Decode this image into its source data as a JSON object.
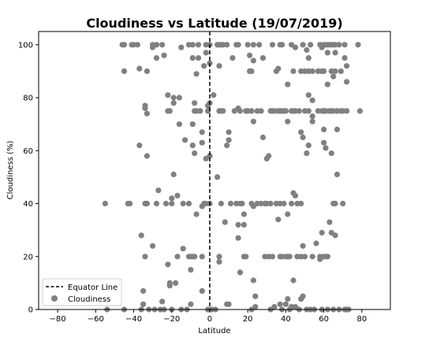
{
  "chart_data": {
    "type": "scatter",
    "title": "Cloudiness vs Latitude (19/07/2019)",
    "xlabel": "Latitude",
    "ylabel": "Cloudiness (%)",
    "xlim": [
      -90,
      95
    ],
    "ylim": [
      0,
      105
    ],
    "xticks": [
      -80,
      -60,
      -40,
      -20,
      0,
      20,
      40,
      60,
      80
    ],
    "yticks": [
      0,
      20,
      40,
      60,
      80,
      100
    ],
    "grid": false,
    "legend_position": "lower-left",
    "equator_line": {
      "name": "Equator Line",
      "x": 0,
      "style": "dashed",
      "color": "#000000"
    },
    "series": [
      {
        "name": "Cloudiness",
        "color": "#808080",
        "points": [
          [
            -55,
            40
          ],
          [
            -54,
            0
          ],
          [
            -46,
            100
          ],
          [
            -45,
            100
          ],
          [
            -45,
            90
          ],
          [
            -45,
            0
          ],
          [
            -43,
            40
          ],
          [
            -42,
            40
          ],
          [
            -41,
            100
          ],
          [
            -40,
            100
          ],
          [
            -38,
            100
          ],
          [
            -37,
            91
          ],
          [
            -37,
            62
          ],
          [
            -36,
            28
          ],
          [
            -36,
            0
          ],
          [
            -35,
            2
          ],
          [
            -35,
            7
          ],
          [
            -34,
            77
          ],
          [
            -34,
            76
          ],
          [
            -34,
            40
          ],
          [
            -34,
            20
          ],
          [
            -33,
            74
          ],
          [
            -33,
            90
          ],
          [
            -33,
            58
          ],
          [
            -33,
            40
          ],
          [
            -32,
            0
          ],
          [
            -30,
            24
          ],
          [
            -30,
            100
          ],
          [
            -30,
            99
          ],
          [
            -29,
            0
          ],
          [
            -28,
            100
          ],
          [
            -28,
            95
          ],
          [
            -28,
            40
          ],
          [
            -27,
            45
          ],
          [
            -26,
            0
          ],
          [
            -25,
            100
          ],
          [
            -25,
            3
          ],
          [
            -24,
            96
          ],
          [
            -24,
            0
          ],
          [
            -23,
            40
          ],
          [
            -22,
            17
          ],
          [
            -22,
            75
          ],
          [
            -22,
            81
          ],
          [
            -21,
            75
          ],
          [
            -21,
            9
          ],
          [
            -21,
            10
          ],
          [
            -20,
            40
          ],
          [
            -20,
            42
          ],
          [
            -20,
            0
          ],
          [
            -19,
            80
          ],
          [
            -19,
            78
          ],
          [
            -19,
            51
          ],
          [
            -18,
            10
          ],
          [
            -17,
            43
          ],
          [
            -17,
            20
          ],
          [
            -16,
            70
          ],
          [
            -16,
            80
          ],
          [
            -15,
            99
          ],
          [
            -15,
            0
          ],
          [
            -14,
            23
          ],
          [
            -14,
            40
          ],
          [
            -13,
            64
          ],
          [
            -12,
            0
          ],
          [
            -11,
            100
          ],
          [
            -11,
            40
          ],
          [
            -11,
            20
          ],
          [
            -10,
            20
          ],
          [
            -10,
            15
          ],
          [
            -10,
            2
          ],
          [
            -9,
            100
          ],
          [
            -9,
            95
          ],
          [
            -9,
            70
          ],
          [
            -9,
            62
          ],
          [
            -9,
            20
          ],
          [
            -8,
            78
          ],
          [
            -8,
            75
          ],
          [
            -8,
            59
          ],
          [
            -8,
            20
          ],
          [
            -7,
            89
          ],
          [
            -7,
            36
          ],
          [
            -7,
            75
          ],
          [
            -6,
            100
          ],
          [
            -6,
            95
          ],
          [
            -5,
            75
          ],
          [
            -4,
            67
          ],
          [
            -4,
            63
          ],
          [
            -4,
            39
          ],
          [
            -4,
            20
          ],
          [
            -4,
            7
          ],
          [
            -3,
            92
          ],
          [
            -3,
            40
          ],
          [
            -2,
            100
          ],
          [
            -2,
            97
          ],
          [
            -2,
            57
          ],
          [
            -2,
            40
          ],
          [
            -1,
            77
          ],
          [
            -1,
            75
          ],
          [
            -1,
            0
          ],
          [
            0,
            100
          ],
          [
            0,
            93
          ],
          [
            0,
            78
          ],
          [
            0,
            58
          ],
          [
            0,
            40
          ],
          [
            1,
            0
          ],
          [
            2,
            81
          ],
          [
            3,
            0
          ],
          [
            4,
            100
          ],
          [
            4,
            50
          ],
          [
            5,
            100
          ],
          [
            5,
            92
          ],
          [
            5,
            75
          ],
          [
            5,
            20
          ],
          [
            5,
            18
          ],
          [
            6,
            100
          ],
          [
            6,
            75
          ],
          [
            6,
            40
          ],
          [
            7,
            100
          ],
          [
            7,
            75
          ],
          [
            8,
            33
          ],
          [
            9,
            100
          ],
          [
            9,
            62
          ],
          [
            9,
            2
          ],
          [
            10,
            67
          ],
          [
            10,
            64
          ],
          [
            10,
            2
          ],
          [
            11,
            40
          ],
          [
            12,
            95
          ],
          [
            13,
            75
          ],
          [
            14,
            100
          ],
          [
            14,
            40
          ],
          [
            15,
            100
          ],
          [
            15,
            76
          ],
          [
            15,
            32
          ],
          [
            15,
            27
          ],
          [
            16,
            75
          ],
          [
            16,
            40
          ],
          [
            16,
            14
          ],
          [
            17,
            40
          ],
          [
            18,
            20
          ],
          [
            18,
            32
          ],
          [
            18,
            36
          ],
          [
            19,
            75
          ],
          [
            19,
            20
          ],
          [
            20,
            100
          ],
          [
            20,
            75
          ],
          [
            21,
            96
          ],
          [
            21,
            90
          ],
          [
            22,
            90
          ],
          [
            22,
            75
          ],
          [
            22,
            40
          ],
          [
            22,
            0
          ],
          [
            23,
            100
          ],
          [
            23,
            71
          ],
          [
            23,
            94
          ],
          [
            23,
            39
          ],
          [
            23,
            11
          ],
          [
            24,
            5
          ],
          [
            24,
            1
          ],
          [
            25,
            75
          ],
          [
            25,
            40
          ],
          [
            26,
            100
          ],
          [
            27,
            75
          ],
          [
            27,
            40
          ],
          [
            28,
            95
          ],
          [
            28,
            65
          ],
          [
            29,
            40
          ],
          [
            29,
            20
          ],
          [
            30,
            57
          ],
          [
            30,
            40
          ],
          [
            31,
            58
          ],
          [
            31,
            20
          ],
          [
            32,
            75
          ],
          [
            32,
            40
          ],
          [
            32,
            0
          ],
          [
            33,
            100
          ],
          [
            33,
            75
          ],
          [
            33,
            20
          ],
          [
            34,
            75
          ],
          [
            34,
            1
          ],
          [
            35,
            90
          ],
          [
            35,
            40
          ],
          [
            36,
            91
          ],
          [
            36,
            75
          ],
          [
            36,
            34
          ],
          [
            37,
            100
          ],
          [
            37,
            75
          ],
          [
            37,
            40
          ],
          [
            37,
            20
          ],
          [
            37,
            2
          ],
          [
            38,
            100
          ],
          [
            38,
            75
          ],
          [
            38,
            20
          ],
          [
            38,
            0
          ],
          [
            39,
            75
          ],
          [
            39,
            40
          ],
          [
            40,
            75
          ],
          [
            40,
            20
          ],
          [
            40,
            2
          ],
          [
            41,
            85
          ],
          [
            41,
            71
          ],
          [
            41,
            36
          ],
          [
            41,
            20
          ],
          [
            41,
            4
          ],
          [
            42,
            20
          ],
          [
            42,
            0
          ],
          [
            43,
            100
          ],
          [
            43,
            75
          ],
          [
            43,
            40
          ],
          [
            43,
            1
          ],
          [
            44,
            90
          ],
          [
            44,
            75
          ],
          [
            44,
            44
          ],
          [
            44,
            11
          ],
          [
            45,
            99
          ],
          [
            45,
            75
          ],
          [
            45,
            43
          ],
          [
            45,
            1
          ],
          [
            46,
            40
          ],
          [
            46,
            20
          ],
          [
            47,
            75
          ],
          [
            47,
            0
          ],
          [
            48,
            90
          ],
          [
            48,
            67
          ],
          [
            48,
            40
          ],
          [
            48,
            20
          ],
          [
            48,
            4
          ],
          [
            49,
            100
          ],
          [
            49,
            65
          ],
          [
            49,
            24
          ],
          [
            49,
            5
          ],
          [
            50,
            90
          ],
          [
            50,
            75
          ],
          [
            50,
            20
          ],
          [
            51,
            98
          ],
          [
            51,
            59
          ],
          [
            51,
            0
          ],
          [
            52,
            95
          ],
          [
            52,
            90
          ],
          [
            52,
            81
          ],
          [
            52,
            75
          ],
          [
            52,
            62
          ],
          [
            53,
            100
          ],
          [
            53,
            0
          ],
          [
            54,
            90
          ],
          [
            54,
            79
          ],
          [
            54,
            73
          ],
          [
            54,
            71
          ],
          [
            54,
            20
          ],
          [
            55,
            0
          ],
          [
            56,
            25
          ],
          [
            57,
            90
          ],
          [
            57,
            75
          ],
          [
            58,
            100
          ],
          [
            58,
            20
          ],
          [
            58,
            19
          ],
          [
            59,
            99
          ],
          [
            59,
            90
          ],
          [
            59,
            75
          ],
          [
            59,
            29
          ],
          [
            59,
            0
          ],
          [
            60,
            100
          ],
          [
            60,
            90
          ],
          [
            60,
            75
          ],
          [
            60,
            68
          ],
          [
            60,
            63
          ],
          [
            60,
            20
          ],
          [
            61,
            100
          ],
          [
            61,
            75
          ],
          [
            61,
            61
          ],
          [
            61,
            20
          ],
          [
            62,
            100
          ],
          [
            62,
            97
          ],
          [
            62,
            85
          ],
          [
            62,
            20
          ],
          [
            62,
            0
          ],
          [
            63,
            100
          ],
          [
            63,
            75
          ],
          [
            63,
            33
          ],
          [
            64,
            100
          ],
          [
            64,
            90
          ],
          [
            64,
            75
          ],
          [
            64,
            59
          ],
          [
            64,
            29
          ],
          [
            65,
            100
          ],
          [
            65,
            88
          ],
          [
            65,
            75
          ],
          [
            65,
            40
          ],
          [
            65,
            0
          ],
          [
            66,
            100
          ],
          [
            66,
            97
          ],
          [
            66,
            90
          ],
          [
            66,
            40
          ],
          [
            66,
            28
          ],
          [
            67,
            75
          ],
          [
            67,
            68
          ],
          [
            67,
            51
          ],
          [
            68,
            100
          ],
          [
            68,
            0
          ],
          [
            69,
            90
          ],
          [
            69,
            75
          ],
          [
            70,
            75
          ],
          [
            70,
            40
          ],
          [
            71,
            100
          ],
          [
            71,
            95
          ],
          [
            71,
            0
          ],
          [
            72,
            92
          ],
          [
            72,
            86
          ],
          [
            72,
            75
          ],
          [
            72,
            0
          ],
          [
            73,
            0
          ],
          [
            78,
            100
          ],
          [
            79,
            75
          ]
        ]
      }
    ]
  }
}
